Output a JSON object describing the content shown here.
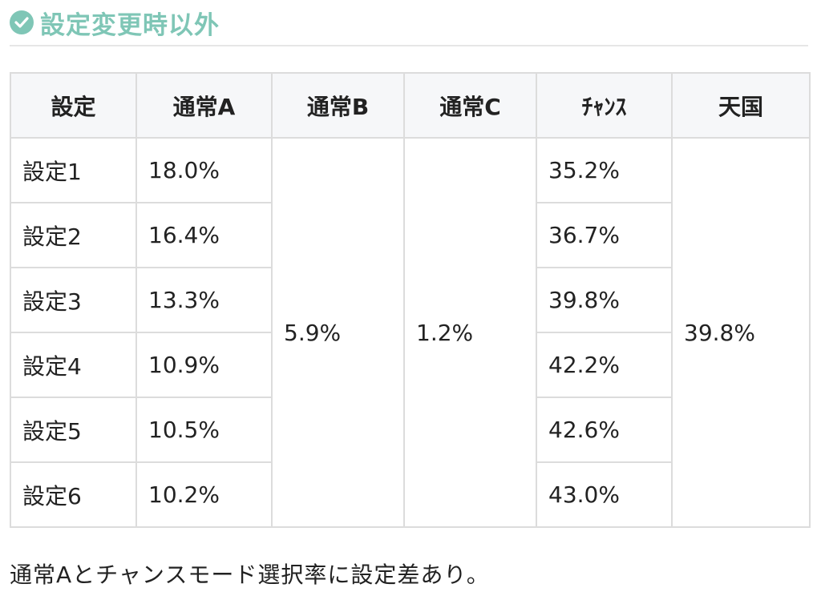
{
  "heading": {
    "icon": "check-circle-icon",
    "title": "設定変更時以外",
    "accent_color": "#7fc6b6"
  },
  "table": {
    "headers": [
      "設定",
      "通常A",
      "通常B",
      "通常C",
      "ﾁｬﾝｽ",
      "天国"
    ],
    "rows": [
      {
        "setting": "設定1",
        "normal_a": "18.0%",
        "chance": "35.2%"
      },
      {
        "setting": "設定2",
        "normal_a": "16.4%",
        "chance": "36.7%"
      },
      {
        "setting": "設定3",
        "normal_a": "13.3%",
        "chance": "39.8%"
      },
      {
        "setting": "設定4",
        "normal_a": "10.9%",
        "chance": "42.2%"
      },
      {
        "setting": "設定5",
        "normal_a": "10.5%",
        "chance": "42.6%"
      },
      {
        "setting": "設定6",
        "normal_a": "10.2%",
        "chance": "43.0%"
      }
    ],
    "normal_b_all": "5.9%",
    "normal_c_all": "1.2%",
    "heaven_all": "39.8%"
  },
  "note": "通常Aとチャンスモード選択率に設定差あり。"
}
